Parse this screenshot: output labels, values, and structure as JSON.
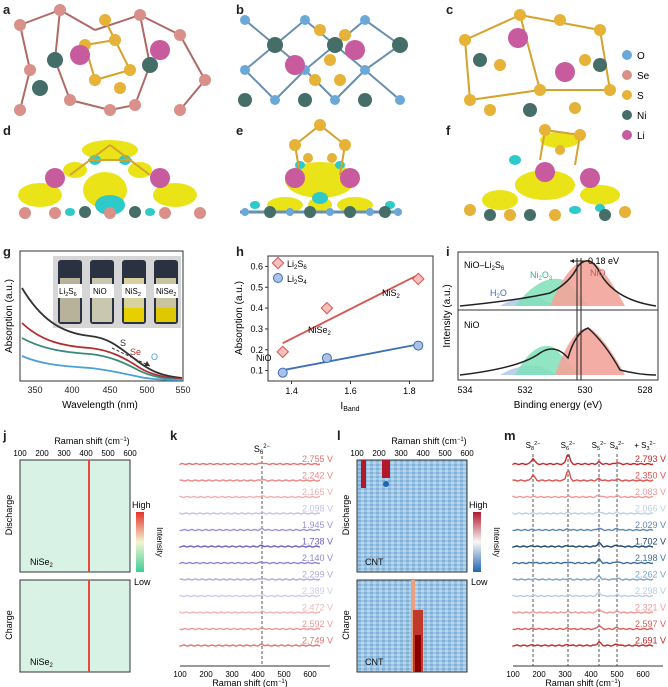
{
  "panel_labels": {
    "a": "a",
    "b": "b",
    "c": "c",
    "d": "d",
    "e": "e",
    "f": "f",
    "g": "g",
    "h": "h",
    "i": "i",
    "j": "j",
    "k": "k",
    "l": "l",
    "m": "m"
  },
  "legend_atoms": [
    {
      "label": "O",
      "color": "#6aa8d8"
    },
    {
      "label": "Se",
      "color": "#d9908a"
    },
    {
      "label": "S",
      "color": "#e6b237"
    },
    {
      "label": "Ni",
      "color": "#456e68"
    },
    {
      "label": "Li",
      "color": "#c85a9e"
    }
  ],
  "panel_g": {
    "xlabel": "Wavelength (nm)",
    "ylabel": "Absorption (a.u.)",
    "xticks": [
      "350",
      "400",
      "450",
      "500",
      "550"
    ],
    "vials": [
      "Li2S6",
      "NiO",
      "NiS2",
      "NiSe2"
    ],
    "vial_labels": [
      {
        "base": "Li",
        "sub": "2",
        "base2": "S",
        "sub2": "6"
      },
      {
        "base": "NiO",
        "sub": "",
        "base2": "",
        "sub2": ""
      },
      {
        "base": "NiS",
        "sub": "2",
        "base2": "",
        "sub2": ""
      },
      {
        "base": "NiSe",
        "sub": "2",
        "base2": "",
        "sub2": ""
      }
    ],
    "annot": {
      "s": "S",
      "se": "Se",
      "o": "O"
    }
  },
  "panel_h": {
    "chart_data": {
      "type": "scatter",
      "xlabel": "I_Band",
      "ylabel": "Absorption (a.u.)",
      "xlim": [
        1.32,
        1.88
      ],
      "ylim": [
        0.05,
        0.65
      ],
      "xticks": [
        1.4,
        1.6,
        1.8
      ],
      "yticks": [
        0.1,
        0.2,
        0.3,
        0.4,
        0.5,
        0.6
      ],
      "series": [
        {
          "name": "Li2S6",
          "color": "#d9534f",
          "points": [
            {
              "x": 1.37,
              "y": 0.19,
              "label": "NiO"
            },
            {
              "x": 1.52,
              "y": 0.4,
              "label": "NiSe2"
            },
            {
              "x": 1.83,
              "y": 0.54,
              "label": "NiS2"
            }
          ]
        },
        {
          "name": "Li2S4",
          "color": "#3f6fb5",
          "points": [
            {
              "x": 1.37,
              "y": 0.09
            },
            {
              "x": 1.52,
              "y": 0.16
            },
            {
              "x": 1.83,
              "y": 0.22
            }
          ]
        }
      ]
    },
    "legend": [
      {
        "base": "Li",
        "sub": "2",
        "base2": "S",
        "sub2": "6"
      },
      {
        "base": "Li",
        "sub": "2",
        "base2": "S",
        "sub2": "4"
      }
    ],
    "point_labels": {
      "nio": "NiO",
      "nise2_base": "NiSe",
      "nise2_sub": "2",
      "nis2_base": "NiS",
      "nis2_sub": "2"
    }
  },
  "panel_i": {
    "xlabel": "Binding energy (eV)",
    "ylabel": "Intensity (a.u.)",
    "xticks": [
      "534",
      "532",
      "530",
      "528"
    ],
    "top_label": "NiO–Li",
    "top_label_sub": "2",
    "top_label_s": "S",
    "top_label_sub2": "6",
    "bottom_label": "NiO",
    "shift": "0.18 eV",
    "peaks": {
      "h2o_base": "H",
      "h2o_sub": "2",
      "h2o_end": "O",
      "ni2o3_base": "Ni",
      "ni2o3_sub": "2",
      "ni2o3_mid": "O",
      "ni2o3_sub2": "3",
      "nio": "NiO"
    }
  },
  "panel_j": {
    "top_axis": "Raman shift (cm",
    "top_axis_sup": "−1",
    "top_axis_end": ")",
    "ticks": [
      "100",
      "200",
      "300",
      "400",
      "500",
      "600"
    ],
    "discharge": "Discharge",
    "charge": "Charge",
    "sample_base": "NiSe",
    "sample_sub": "2",
    "high": "High",
    "low": "Low",
    "intensity": "Intensity"
  },
  "panel_k": {
    "xlabel": "Raman shift (cm",
    "xlabel_sup": "−1",
    "xlabel_end": ")",
    "xticks": [
      "100",
      "200",
      "300",
      "400",
      "500",
      "600"
    ],
    "peak_base": "S",
    "peak_sub": "6",
    "peak_sup": "2−",
    "voltages": [
      "2.755 V",
      "2.242 V",
      "2.165 V",
      "2.098 V",
      "1.945 V",
      "1.738 V",
      "2.140 V",
      "2.299 V",
      "2.389 V",
      "2.472 V",
      "2.592 V",
      "2.749 V"
    ],
    "colors": [
      "#e57373",
      "#e88a8a",
      "#efb0b0",
      "#c7c3e6",
      "#9c94d6",
      "#6e64c6",
      "#8f86d2",
      "#b1abe0",
      "#cfcbea",
      "#f0b8b8",
      "#e99a9a",
      "#e57373"
    ]
  },
  "panel_l": {
    "top_axis": "Raman shift (cm",
    "top_axis_sup": "−1",
    "top_axis_end": ")",
    "ticks": [
      "100",
      "200",
      "300",
      "400",
      "500",
      "600"
    ],
    "discharge": "Discharge",
    "charge": "Charge",
    "sample": "CNT",
    "high": "High",
    "low": "Low",
    "intensity": "Intensity"
  },
  "panel_m": {
    "xlabel": "Raman shift (cm",
    "xlabel_sup": "−1",
    "xlabel_end": ")",
    "xticks": [
      "100",
      "200",
      "300",
      "400",
      "500",
      "600"
    ],
    "peaks": [
      {
        "base": "S",
        "sub": "8",
        "sup": "2−"
      },
      {
        "base": "S",
        "sub": "6",
        "sup": "2−"
      },
      {
        "base": "S",
        "sub": "5",
        "sup": "2−"
      },
      {
        "base": "S",
        "sub": "4",
        "sup": "2−"
      },
      {
        "plus": "+ ",
        "base": "S",
        "sub": "3",
        "sup": "2−"
      }
    ],
    "voltages": [
      "2.793 V",
      "2.350 V",
      "2.083 V",
      "2.066 V",
      "2.029 V",
      "1.702 V",
      "2.198 V",
      "2.262 V",
      "2.298 V",
      "2.321 V",
      "2.597 V",
      "2.691 V"
    ],
    "colors": [
      "#c62828",
      "#d9534f",
      "#ef9a9a",
      "#bcd0e6",
      "#5d86b8",
      "#22476e",
      "#3f6fa0",
      "#7fa3c9",
      "#b9cde3",
      "#ef9a9a",
      "#dd5c5c",
      "#c62828"
    ]
  }
}
